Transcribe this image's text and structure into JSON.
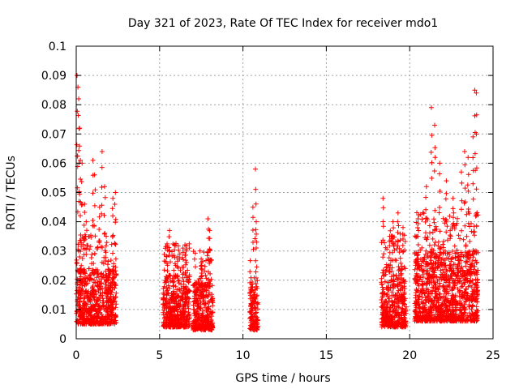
{
  "chart_data": {
    "type": "scatter",
    "title": "Day 321 of 2023, Rate Of TEC Index for receiver mdo1",
    "xlabel": "GPS time / hours",
    "ylabel": "ROTI / TECUs",
    "xlim": [
      0,
      25
    ],
    "ylim": [
      0,
      0.1
    ],
    "grid": true,
    "marker": "+",
    "colors": {
      "points": "#ff0000",
      "grid": "#a0a0a0",
      "frame": "#000000"
    },
    "x_ticks": [
      "0",
      "5",
      "10",
      "15",
      "20",
      "25"
    ],
    "y_ticks": [
      "0",
      "0.01",
      "0.02",
      "0.03",
      "0.04",
      "0.05",
      "0.06",
      "0.07",
      "0.08",
      "0.09",
      "0.1"
    ],
    "segments": [
      {
        "x_start": 0.0,
        "x_end": 2.4,
        "y_base": [
          0.005,
          0.024
        ],
        "peaks": [
          [
            0.05,
            0.09
          ],
          [
            0.1,
            0.086
          ],
          [
            0.15,
            0.082
          ],
          [
            0.2,
            0.072
          ],
          [
            0.25,
            0.061
          ],
          [
            0.35,
            0.06
          ],
          [
            0.5,
            0.046
          ],
          [
            0.6,
            0.04
          ],
          [
            1.0,
            0.061
          ],
          [
            1.1,
            0.056
          ],
          [
            1.4,
            0.045
          ],
          [
            1.55,
            0.064
          ],
          [
            1.7,
            0.052
          ],
          [
            1.8,
            0.035
          ],
          [
            2.2,
            0.048
          ],
          [
            2.35,
            0.05
          ]
        ]
      },
      {
        "x_start": 5.2,
        "x_end": 6.8,
        "y_base": [
          0.004,
          0.022
        ],
        "peaks": [
          [
            5.6,
            0.037
          ],
          [
            5.9,
            0.032
          ],
          [
            6.1,
            0.028
          ],
          [
            6.4,
            0.031
          ],
          [
            6.6,
            0.03
          ]
        ]
      },
      {
        "x_start": 7.0,
        "x_end": 8.2,
        "y_base": [
          0.003,
          0.02
        ],
        "peaks": [
          [
            7.5,
            0.026
          ],
          [
            7.9,
            0.041
          ],
          [
            8.0,
            0.037
          ]
        ]
      },
      {
        "x_start": 10.4,
        "x_end": 10.9,
        "y_base": [
          0.003,
          0.018
        ],
        "peaks": [
          [
            10.6,
            0.045
          ],
          [
            10.75,
            0.058
          ],
          [
            10.8,
            0.04
          ]
        ]
      },
      {
        "x_start": 18.3,
        "x_end": 19.8,
        "y_base": [
          0.004,
          0.025
        ],
        "peaks": [
          [
            18.4,
            0.048
          ],
          [
            18.8,
            0.035
          ],
          [
            19.0,
            0.04
          ],
          [
            19.3,
            0.043
          ],
          [
            19.6,
            0.038
          ]
        ]
      },
      {
        "x_start": 20.3,
        "x_end": 24.1,
        "y_base": [
          0.006,
          0.03
        ],
        "peaks": [
          [
            20.5,
            0.041
          ],
          [
            21.0,
            0.052
          ],
          [
            21.3,
            0.079
          ],
          [
            21.5,
            0.073
          ],
          [
            21.8,
            0.06
          ],
          [
            22.2,
            0.054
          ],
          [
            22.6,
            0.048
          ],
          [
            23.1,
            0.057
          ],
          [
            23.3,
            0.064
          ],
          [
            23.5,
            0.062
          ],
          [
            23.8,
            0.069
          ],
          [
            23.9,
            0.085
          ],
          [
            24.0,
            0.084
          ]
        ]
      }
    ]
  }
}
